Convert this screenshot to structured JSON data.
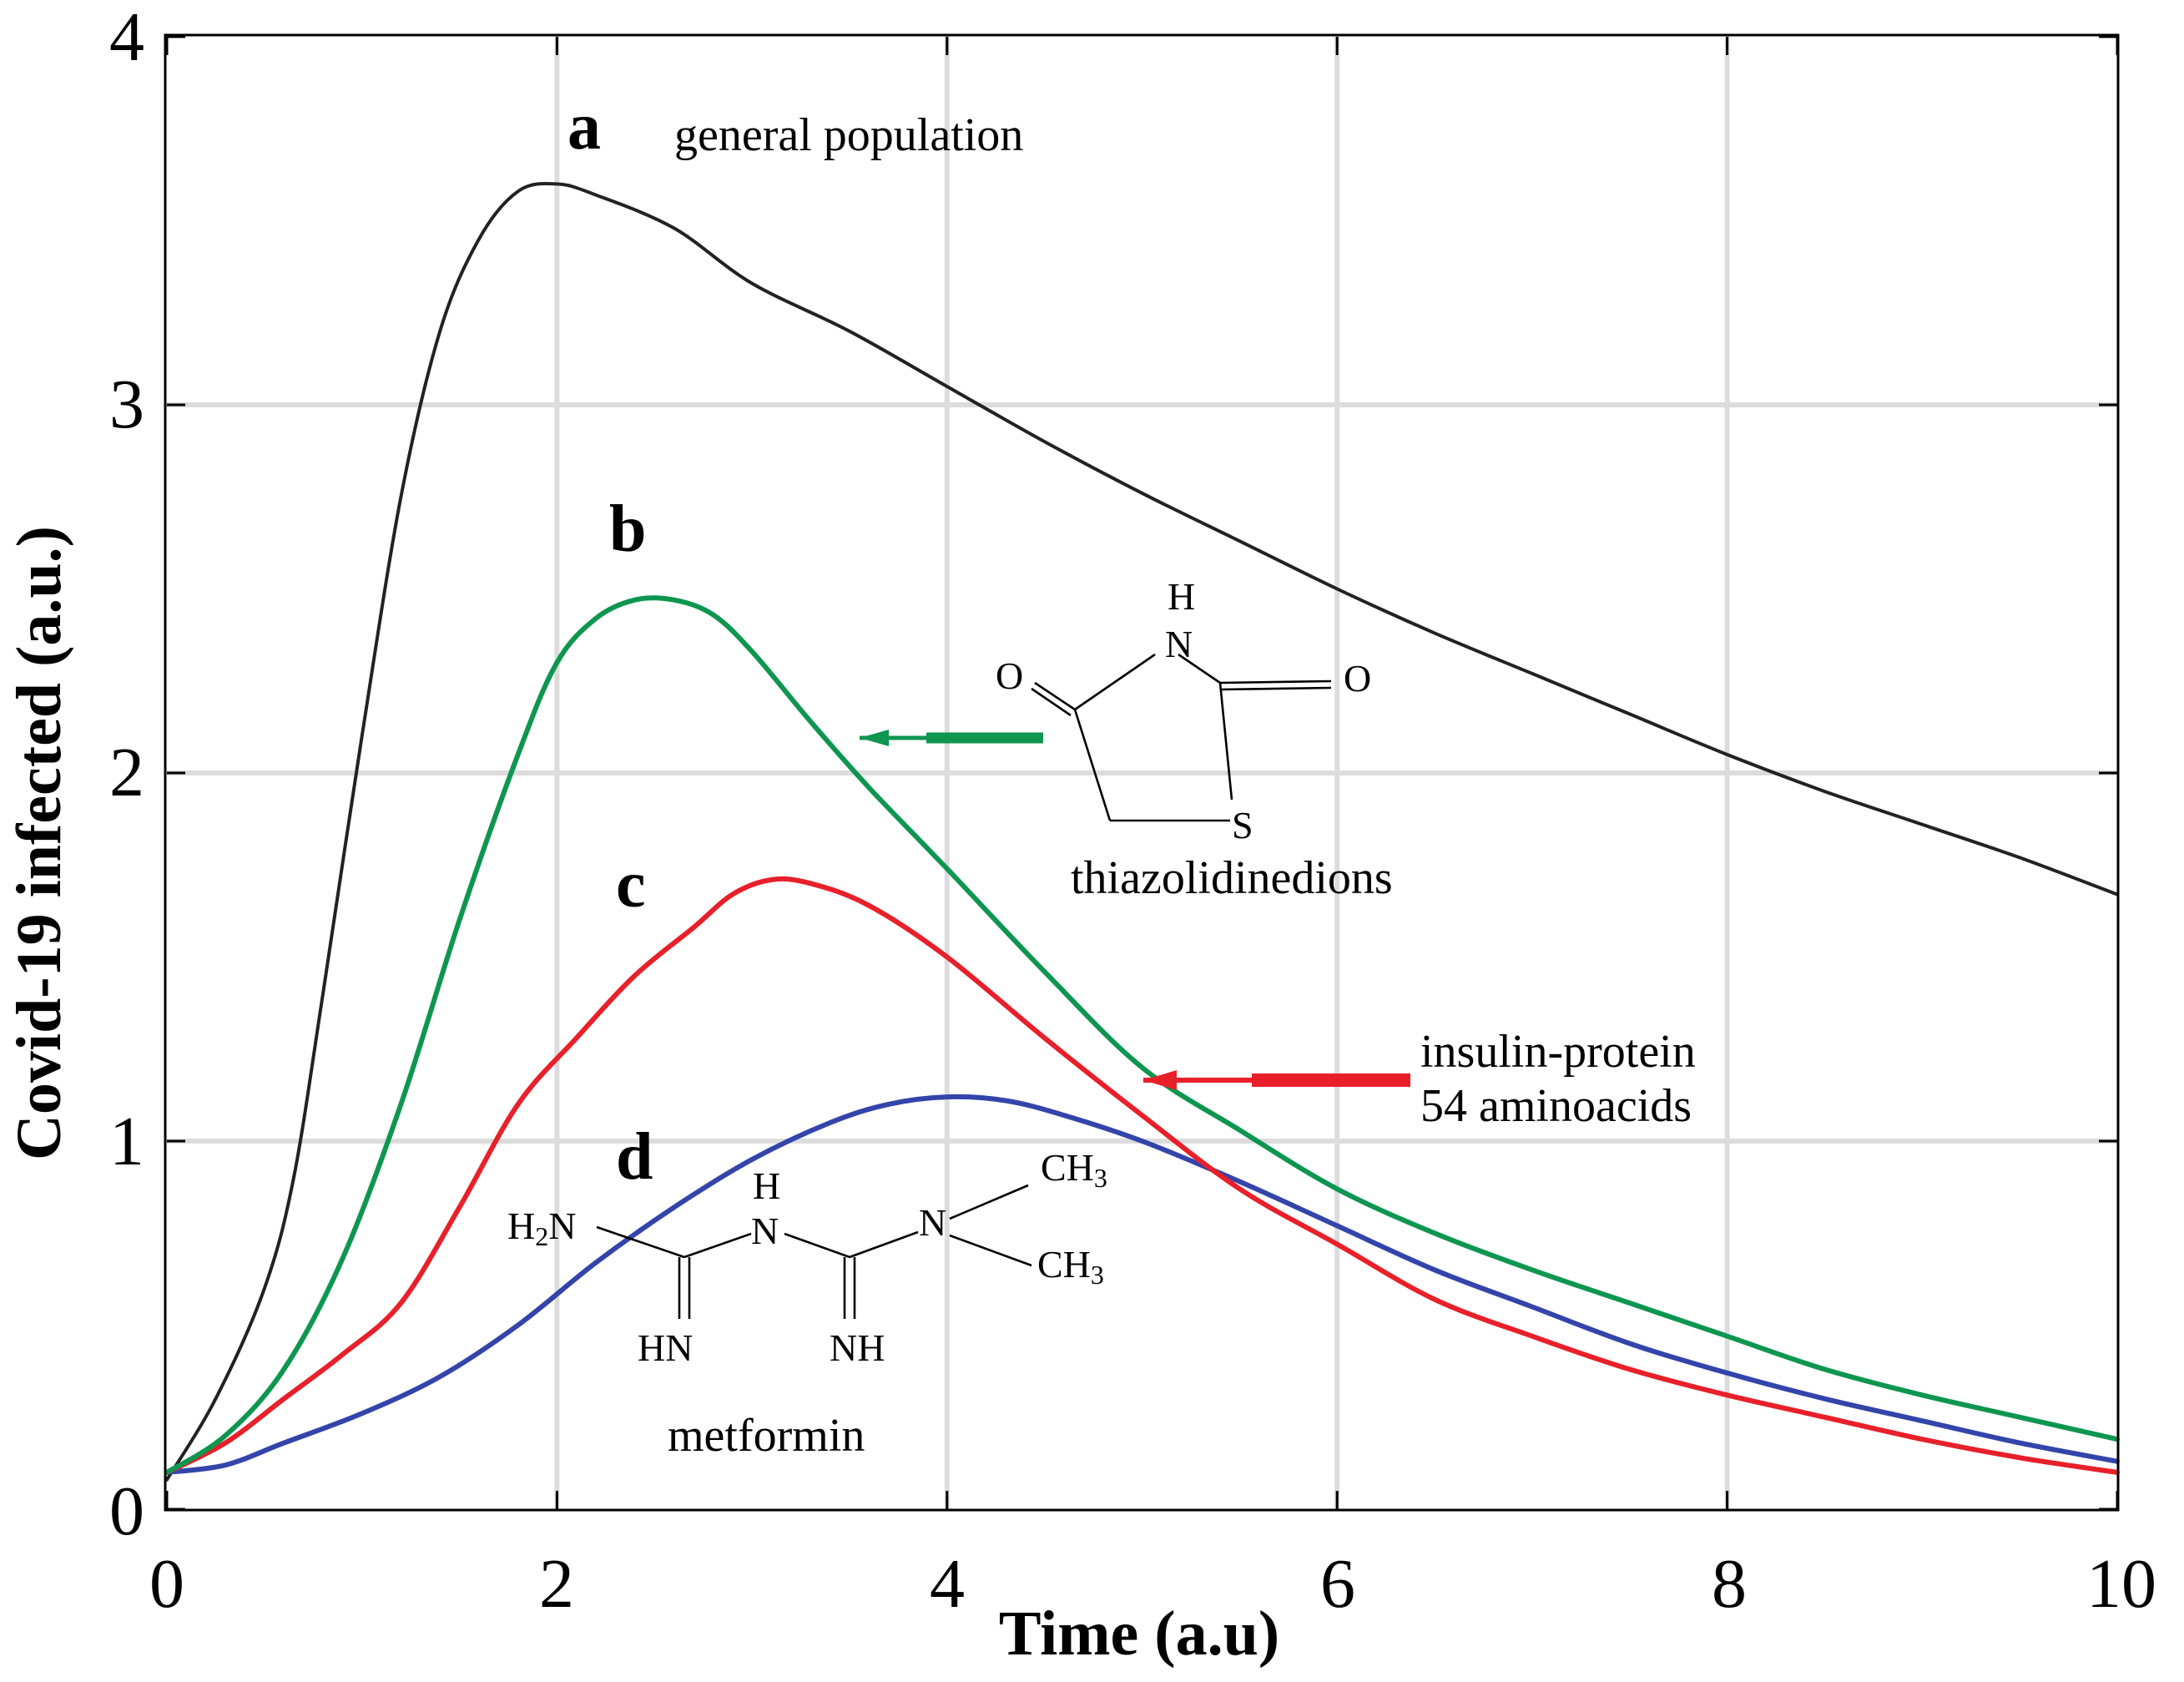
{
  "chart_data": {
    "type": "line",
    "xlabel": "Time (a.u)",
    "ylabel": "Covid-19 infected (a.u.)",
    "xlim": [
      0,
      10
    ],
    "ylim": [
      0,
      4
    ],
    "x_ticks": [
      "0",
      "2",
      "4",
      "6",
      "8",
      "10"
    ],
    "y_ticks": [
      "0",
      "1",
      "2",
      "3",
      "4"
    ],
    "grid": true,
    "series": [
      {
        "name": "a",
        "label": "general population",
        "color": "#222222",
        "x": [
          0,
          0.25,
          0.5,
          0.65,
          0.8,
          1.0,
          1.2,
          1.4,
          1.6,
          1.8,
          2.0,
          2.2,
          2.6,
          3.0,
          3.5,
          4.0,
          4.5,
          5.0,
          5.5,
          6.0,
          6.5,
          7.0,
          7.5,
          8.0,
          8.5,
          9.0,
          9.5,
          10.0
        ],
        "y": [
          0.08,
          0.3,
          0.6,
          0.9,
          1.4,
          2.1,
          2.75,
          3.2,
          3.45,
          3.58,
          3.6,
          3.57,
          3.48,
          3.33,
          3.2,
          3.05,
          2.9,
          2.76,
          2.63,
          2.5,
          2.38,
          2.27,
          2.16,
          2.05,
          1.95,
          1.86,
          1.77,
          1.67
        ]
      },
      {
        "name": "b",
        "label": "thiazolidinedions",
        "color": "#0e9650",
        "x": [
          0,
          0.3,
          0.6,
          0.9,
          1.2,
          1.5,
          1.8,
          2.0,
          2.2,
          2.4,
          2.6,
          2.8,
          3.0,
          3.3,
          3.6,
          4.0,
          4.5,
          5.0,
          5.5,
          6.0,
          6.5,
          7.0,
          7.5,
          8.0,
          8.5,
          9.0,
          9.5,
          10.0
        ],
        "y": [
          0.1,
          0.2,
          0.38,
          0.68,
          1.1,
          1.6,
          2.05,
          2.3,
          2.42,
          2.47,
          2.47,
          2.43,
          2.33,
          2.14,
          1.96,
          1.74,
          1.46,
          1.2,
          1.03,
          0.87,
          0.75,
          0.65,
          0.56,
          0.47,
          0.38,
          0.31,
          0.25,
          0.19
        ]
      },
      {
        "name": "c",
        "label": "insulin-protein 54 aminoacids",
        "color": "#e8202a",
        "x": [
          0,
          0.3,
          0.6,
          0.9,
          1.2,
          1.5,
          1.8,
          2.1,
          2.4,
          2.7,
          2.9,
          3.1,
          3.3,
          3.6,
          4.0,
          4.5,
          5.0,
          5.5,
          6.0,
          6.5,
          7.0,
          7.5,
          8.0,
          8.5,
          9.0,
          9.5,
          10.0
        ],
        "y": [
          0.1,
          0.18,
          0.3,
          0.42,
          0.56,
          0.82,
          1.1,
          1.28,
          1.45,
          1.58,
          1.67,
          1.71,
          1.7,
          1.64,
          1.5,
          1.28,
          1.07,
          0.87,
          0.72,
          0.57,
          0.47,
          0.38,
          0.31,
          0.25,
          0.19,
          0.14,
          0.1
        ]
      },
      {
        "name": "d",
        "label": "metformin",
        "color": "#3344aa",
        "x": [
          0,
          0.3,
          0.6,
          1.0,
          1.4,
          1.8,
          2.2,
          2.6,
          3.0,
          3.4,
          3.7,
          4.0,
          4.3,
          4.6,
          5.0,
          5.5,
          6.0,
          6.5,
          7.0,
          7.5,
          8.0,
          8.5,
          9.0,
          9.5,
          10.0
        ],
        "y": [
          0.1,
          0.12,
          0.18,
          0.26,
          0.36,
          0.5,
          0.67,
          0.82,
          0.95,
          1.05,
          1.1,
          1.12,
          1.11,
          1.07,
          1.0,
          0.89,
          0.77,
          0.65,
          0.55,
          0.45,
          0.37,
          0.3,
          0.24,
          0.18,
          0.13
        ]
      }
    ],
    "annotations": {
      "a_letter": "a",
      "a_text": "general population",
      "b_letter": "b",
      "b_text": "thiazolidinedions",
      "c_letter": "c",
      "c_text_1": "insulin-protein",
      "c_text_2": "54 aminoacids",
      "d_letter": "d",
      "d_text": "metformin"
    },
    "molecules": {
      "tzd": {
        "H": "H",
        "N": "N",
        "O_left": "O",
        "O_right": "O",
        "S": "S"
      },
      "metformin": {
        "H2N_H": "H",
        "H2N_2": "2",
        "H2N_N": "N",
        "H": "H",
        "N1": "N",
        "N2": "N",
        "CH3_a": "CH",
        "CH3_a_sub": "3",
        "CH3_b": "CH",
        "CH3_b_sub": "3",
        "HN": "HN",
        "NH": "NH"
      }
    }
  }
}
